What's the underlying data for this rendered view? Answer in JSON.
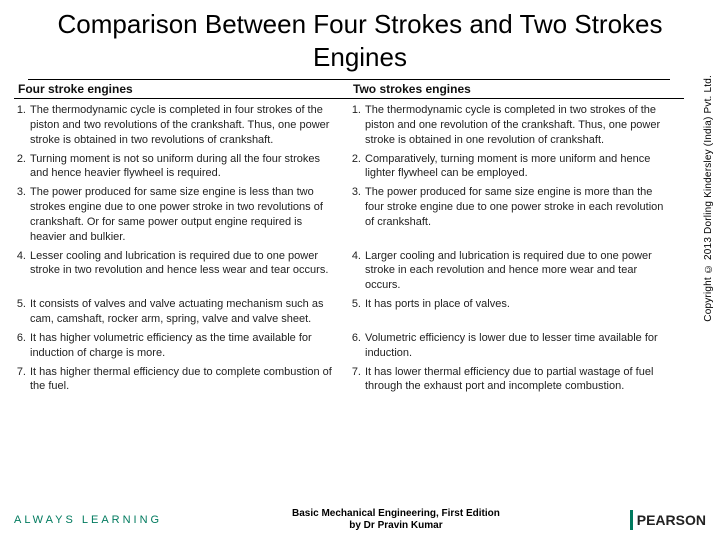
{
  "title": "Comparison Between Four Strokes and Two Strokes Engines",
  "headers": {
    "left": "Four stroke engines",
    "right": "Two strokes engines"
  },
  "rows": [
    {
      "n": "1.",
      "left": "The thermodynamic cycle is completed in four strokes of the piston and two revolutions of the crankshaft. Thus, one power stroke is obtained in two revolutions of crankshaft.",
      "right": "The thermodynamic cycle is completed in two strokes of the piston and one revolution of the crankshaft. Thus, one power stroke is obtained in one revolution of crankshaft."
    },
    {
      "n": "2.",
      "left": "Turning moment is not so uniform during all the four strokes and hence heavier flywheel is required.",
      "right": "Comparatively, turning moment is more uniform and hence lighter flywheel can be employed."
    },
    {
      "n": "3.",
      "left": "The power produced for same size engine is less than two strokes engine due to one power stroke in two revolutions of crankshaft. Or for same power output engine required is heavier and bulkier.",
      "right": "The power produced for same size engine is more than the four stroke engine due to one power stroke in each revolution of crankshaft."
    },
    {
      "n": "4.",
      "left": "Lesser cooling and lubrication is required due to one power stroke in two revolution and hence less wear and tear occurs.",
      "right": "Larger cooling and lubrication is required due to one power stroke in each revolution and hence more wear and tear occurs."
    },
    {
      "n": "5.",
      "left": "It consists of valves and valve actuating mechanism such as cam, camshaft, rocker arm, spring, valve and valve sheet.",
      "right": "It has ports in place of valves."
    },
    {
      "n": "6.",
      "left": "It has higher volumetric efficiency as the time available for induction of charge is more.",
      "right": "Volumetric efficiency is lower due to lesser time available for induction."
    },
    {
      "n": "7.",
      "left": "It has higher thermal efficiency due to complete combustion of the fuel.",
      "right": "It has lower thermal efficiency due to partial wastage of fuel through the exhaust port and incomplete combustion."
    }
  ],
  "copyright": "Copyright © 2013 Dorling Kindersley (India) Pvt. Ltd.",
  "footer": {
    "left": "ALWAYS LEARNING",
    "center_line1": "Basic Mechanical Engineering, First Edition",
    "center_line2": "by Dr Pravin Kumar",
    "brand": "PEARSON"
  },
  "colors": {
    "accent": "#007a5e",
    "text": "#000000",
    "bg": "#ffffff"
  }
}
